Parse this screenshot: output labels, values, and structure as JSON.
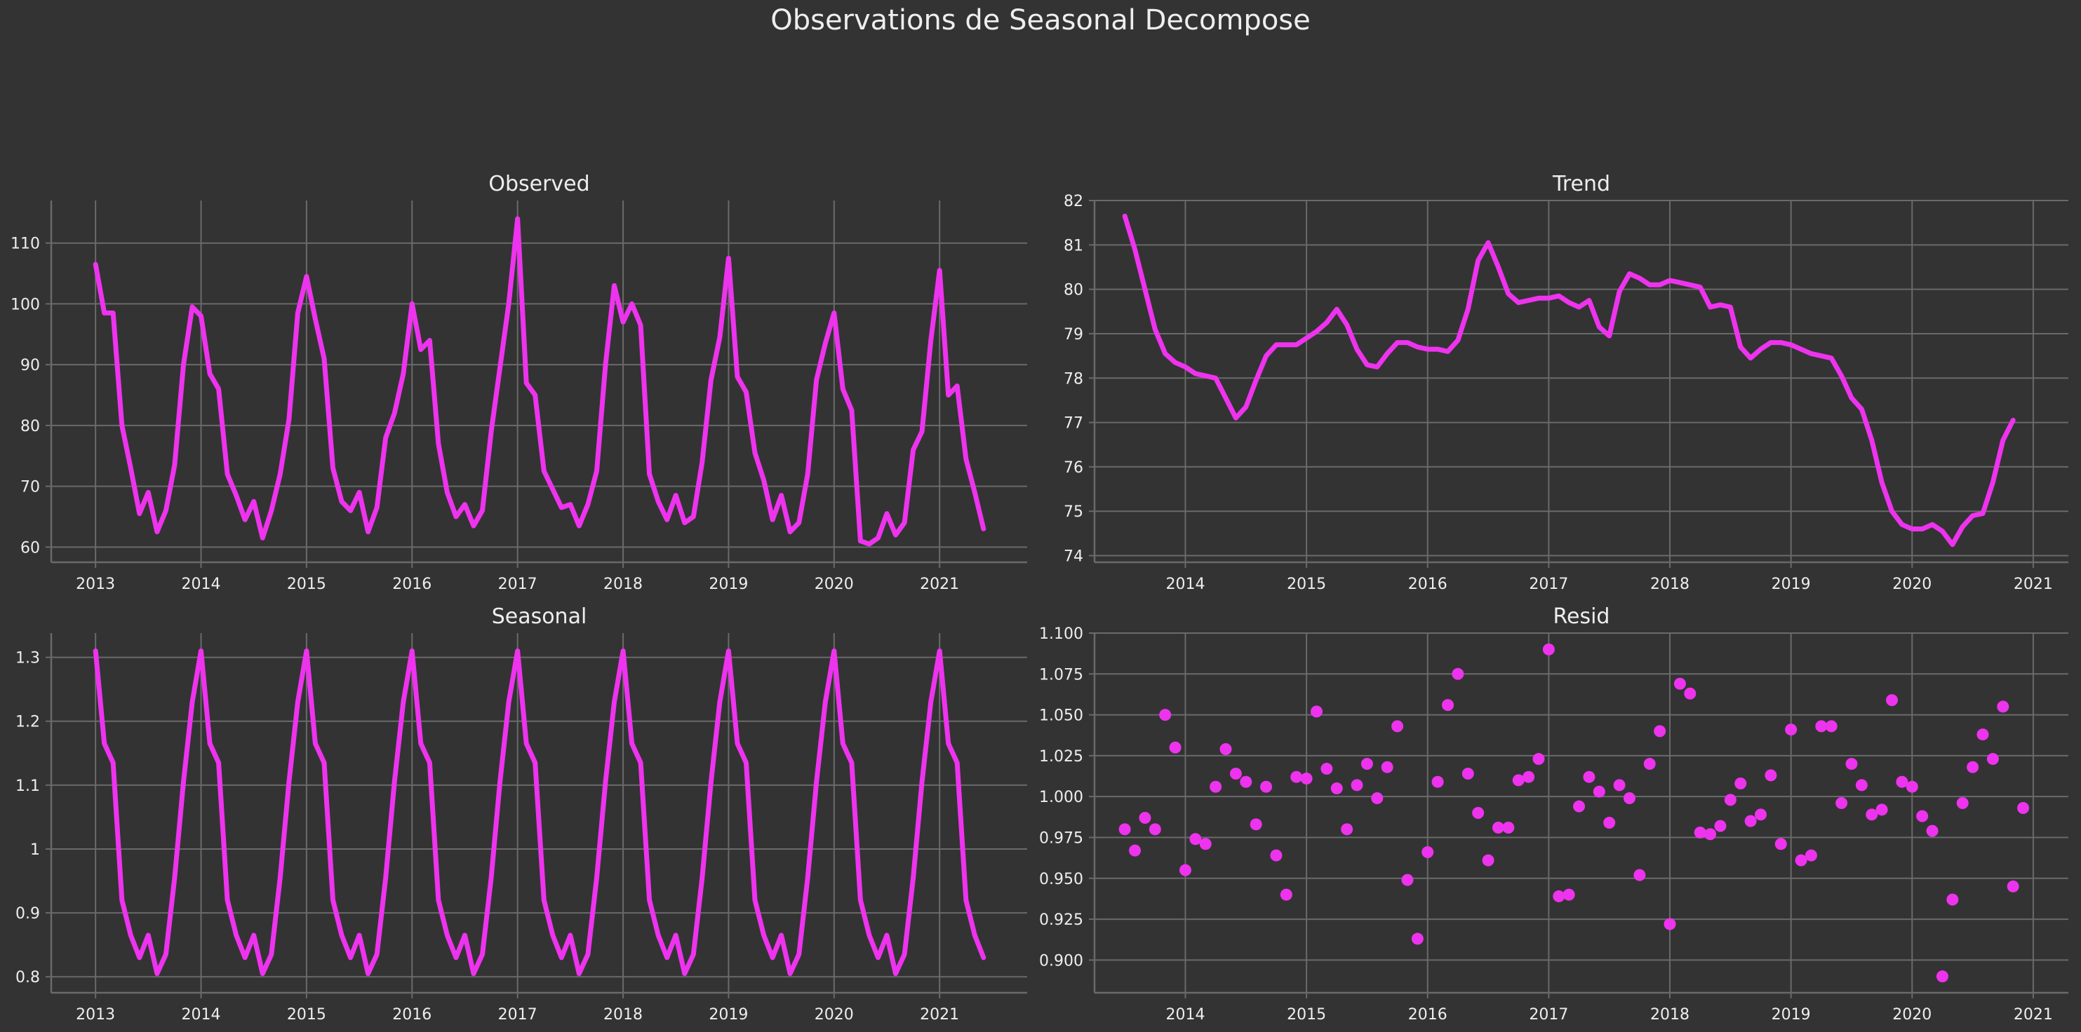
{
  "title": "Observations de Seasonal Decompose",
  "colors": {
    "background": "#333333",
    "line": "#ee33ee",
    "grid": "#6a6a6a",
    "text": "#eeeeee"
  },
  "chart_data": [
    {
      "name": "observed",
      "type": "line",
      "title": "Observed",
      "xlabel": "",
      "ylabel": "",
      "x_start": "2013-01",
      "x_step": "month",
      "xlim": [
        2012.58,
        2021.83
      ],
      "ylim": [
        57.5,
        117
      ],
      "xticks": [
        "2013",
        "2014",
        "2015",
        "2016",
        "2017",
        "2018",
        "2019",
        "2020",
        "2021"
      ],
      "yticks": [
        60,
        70,
        80,
        90,
        100,
        110
      ],
      "grid": true,
      "values": [
        106.5,
        98.5,
        98.5,
        80,
        73,
        65.5,
        69,
        62.5,
        66,
        73.5,
        90,
        99.5,
        98,
        88.5,
        86,
        72,
        68.5,
        64.5,
        67.5,
        61.5,
        66,
        72,
        81,
        98.5,
        104.5,
        97.5,
        91,
        73,
        67.5,
        66,
        69,
        62.5,
        66.5,
        78,
        82,
        88.5,
        100,
        92.5,
        94,
        77,
        69,
        65,
        67,
        63.5,
        66,
        79,
        89.5,
        100,
        114,
        87,
        85,
        72.5,
        69.5,
        66.5,
        67,
        63.5,
        67,
        72.5,
        90,
        103,
        97,
        100,
        96.5,
        72,
        67.5,
        64.5,
        68.5,
        64,
        65,
        74,
        87.5,
        94.5,
        107.5,
        88,
        85.5,
        75.5,
        71,
        64.5,
        68.5,
        62.5,
        64,
        72,
        87.5,
        93.5,
        98.5,
        86,
        82.5,
        61,
        60.5,
        61.5,
        65.5,
        62,
        64,
        76,
        79,
        94,
        105.5,
        85,
        86.5,
        74.5,
        69,
        63
      ]
    },
    {
      "name": "trend",
      "type": "line",
      "title": "Trend",
      "xlabel": "",
      "ylabel": "",
      "x_start": "2013-07",
      "x_step": "month",
      "xlim": [
        2013.25,
        2021.29
      ],
      "ylim": [
        73.85,
        82
      ],
      "xticks": [
        "2014",
        "2015",
        "2016",
        "2017",
        "2018",
        "2019",
        "2020",
        "2021"
      ],
      "yticks": [
        74,
        75,
        76,
        77,
        78,
        79,
        80,
        81,
        82
      ],
      "grid": true,
      "values": [
        81.65,
        80.9,
        80,
        79.1,
        78.55,
        78.35,
        78.25,
        78.1,
        78.05,
        78,
        77.55,
        77.1,
        77.35,
        77.95,
        78.5,
        78.75,
        78.75,
        78.75,
        78.9,
        79.05,
        79.25,
        79.55,
        79.2,
        78.65,
        78.3,
        78.25,
        78.55,
        78.8,
        78.8,
        78.7,
        78.65,
        78.65,
        78.6,
        78.85,
        79.55,
        80.65,
        81.05,
        80.5,
        79.9,
        79.7,
        79.75,
        79.8,
        79.8,
        79.85,
        79.7,
        79.6,
        79.75,
        79.15,
        78.95,
        79.95,
        80.35,
        80.25,
        80.1,
        80.1,
        80.2,
        80.15,
        80.1,
        80.05,
        79.6,
        79.65,
        79.6,
        78.7,
        78.45,
        78.65,
        78.8,
        78.8,
        78.75,
        78.65,
        78.55,
        78.5,
        78.45,
        78.05,
        77.55,
        77.3,
        76.6,
        75.65,
        75,
        74.7,
        74.6,
        74.6,
        74.7,
        74.55,
        74.25,
        74.65,
        74.9,
        74.95,
        75.65,
        76.6,
        77.05
      ]
    },
    {
      "name": "seasonal",
      "type": "line",
      "title": "Seasonal",
      "xlabel": "",
      "ylabel": "",
      "x_start": "2013-01",
      "x_step": "month",
      "xlim": [
        2012.58,
        2021.83
      ],
      "ylim": [
        0.775,
        1.338
      ],
      "xticks": [
        "2013",
        "2014",
        "2015",
        "2016",
        "2017",
        "2018",
        "2019",
        "2020",
        "2021"
      ],
      "yticks": [
        0.8,
        0.9,
        1.0,
        1.1,
        1.2,
        1.3
      ],
      "grid": true,
      "season": [
        1.31,
        1.165,
        1.135,
        0.92,
        0.865,
        0.83,
        0.865,
        0.805,
        0.835,
        0.955,
        1.105,
        1.23
      ],
      "periods": 102
    },
    {
      "name": "resid",
      "type": "scatter",
      "title": "Resid",
      "xlabel": "",
      "ylabel": "",
      "x_start": "2013-07",
      "x_step": "month",
      "xlim": [
        2013.25,
        2021.29
      ],
      "ylim": [
        0.88,
        1.1
      ],
      "xticks": [
        "2014",
        "2015",
        "2016",
        "2017",
        "2018",
        "2019",
        "2020",
        "2021"
      ],
      "yticks": [
        "0.900",
        "0.925",
        "0.950",
        "0.975",
        "1.000",
        "1.025",
        "1.050",
        "1.075",
        "1.100"
      ],
      "grid": true,
      "values": [
        0.98,
        0.967,
        0.987,
        0.98,
        1.05,
        1.03,
        0.955,
        0.974,
        0.971,
        1.006,
        1.029,
        1.014,
        1.009,
        0.983,
        1.006,
        0.964,
        0.94,
        1.012,
        1.011,
        1.052,
        1.017,
        1.005,
        0.98,
        1.007,
        1.02,
        0.999,
        1.018,
        1.043,
        0.949,
        0.913,
        0.966,
        1.009,
        1.056,
        1.075,
        1.014,
        0.99,
        0.961,
        0.981,
        0.981,
        1.01,
        1.012,
        1.023,
        1.09,
        0.939,
        0.94,
        0.994,
        1.012,
        1.003,
        0.984,
        1.007,
        0.999,
        0.952,
        1.02,
        1.04,
        0.922,
        1.069,
        1.063,
        0.978,
        0.977,
        0.982,
        0.998,
        1.008,
        0.985,
        0.989,
        1.013,
        0.971,
        1.041,
        0.961,
        0.964,
        1.043,
        1.043,
        0.996,
        1.02,
        1.007,
        0.989,
        0.992,
        1.059,
        1.009,
        1.006,
        0.988,
        0.979,
        0.89,
        0.937,
        0.996,
        1.018,
        1.038,
        1.023,
        1.055,
        0.945,
        0.993
      ]
    }
  ]
}
